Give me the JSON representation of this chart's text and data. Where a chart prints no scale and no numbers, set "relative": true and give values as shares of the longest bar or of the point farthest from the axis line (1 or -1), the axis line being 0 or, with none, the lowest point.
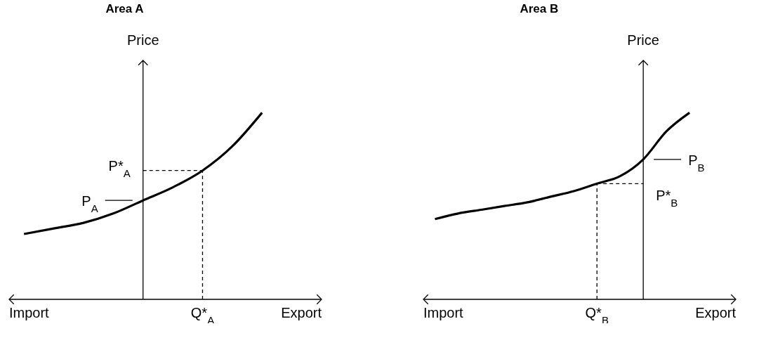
{
  "chart_data": [
    {
      "type": "line",
      "title": "Area A",
      "ylabel": "Price",
      "relative": true,
      "categories": [
        null,
        null,
        null,
        null,
        null,
        null,
        null,
        null,
        null
      ],
      "series": [
        {
          "color": "#000000",
          "values": [
            0.35,
            0.38,
            0.41,
            0.46,
            0.53,
            0.6,
            0.69,
            0.82,
            1
          ]
        }
      ],
      "ref_lines": [
        {
          "axis": "y",
          "value": 0.69,
          "label": "P*$_{A}$",
          "line_style": "dashed"
        },
        {
          "axis": "y",
          "value": 0.53,
          "label": "P$_{A}$",
          "line_style": "solid"
        }
      ],
      "annotations": [
        "Import",
        "Q*$_{A}$",
        "Export"
      ]
    },
    {
      "type": "line",
      "title": "Area B",
      "ylabel": "Price",
      "relative": true,
      "categories": [
        null,
        null,
        null,
        null,
        null,
        null,
        null,
        null,
        null,
        null,
        null,
        null
      ],
      "series": [
        {
          "color": "#000000",
          "values": [
            0.43,
            0.46,
            0.48,
            0.5,
            0.52,
            0.55,
            0.58,
            0.62,
            0.66,
            0.75,
            0.9,
            1
          ]
        }
      ],
      "ref_lines": [
        {
          "axis": "y",
          "value": 0.62,
          "label": "P*$_{B}$",
          "line_style": "dashed"
        },
        {
          "axis": "y",
          "value": 0.75,
          "label": "P$_{B}$",
          "line_style": "solid"
        }
      ],
      "annotations": [
        "Import",
        "Q*$_{B}$",
        "Export"
      ]
    }
  ]
}
